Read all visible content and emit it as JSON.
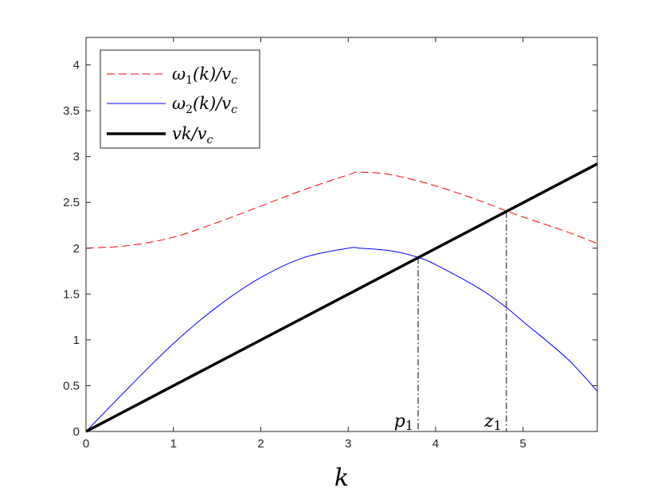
{
  "chart_data": {
    "type": "line",
    "title": "",
    "xlabel": "k",
    "ylabel": "",
    "xlim": [
      0,
      5.85
    ],
    "ylim": [
      0,
      4.3
    ],
    "xticks": [
      "0",
      "1",
      "2",
      "3",
      "4",
      "5"
    ],
    "yticks": [
      "0",
      "0.5",
      "1",
      "1.5",
      "2",
      "2.5",
      "3",
      "3.5",
      "4"
    ],
    "grid": false,
    "legend_position": "top-left",
    "series": [
      {
        "name_parts": {
          "sym": "ω",
          "sub": "1",
          "rest": "(k)/v",
          "sub2": "c"
        },
        "style": "dashed",
        "color": "#ff0000",
        "x": [
          0,
          0.5,
          1,
          1.5,
          2,
          2.5,
          3,
          3.14,
          3.5,
          4,
          4.5,
          4.8,
          5,
          5.5,
          5.85
        ],
        "y": [
          2.0,
          2.03,
          2.12,
          2.28,
          2.46,
          2.64,
          2.8,
          2.83,
          2.8,
          2.68,
          2.52,
          2.41,
          2.34,
          2.18,
          2.05
        ]
      },
      {
        "name_parts": {
          "sym": "ω",
          "sub": "2",
          "rest": "(k)/v",
          "sub2": "c"
        },
        "style": "solid",
        "color": "#0000ff",
        "x": [
          0,
          0.5,
          1,
          1.5,
          2,
          2.5,
          3,
          3.14,
          3.5,
          3.8,
          4,
          4.5,
          4.8,
          5,
          5.5,
          5.85
        ],
        "y": [
          0,
          0.49,
          0.96,
          1.36,
          1.68,
          1.9,
          2.0,
          2.0,
          1.97,
          1.9,
          1.82,
          1.56,
          1.36,
          1.2,
          0.8,
          0.44
        ]
      },
      {
        "name_parts": {
          "sym": "vk/v",
          "sub": "",
          "rest": "",
          "sub2": "c"
        },
        "style": "thick",
        "color": "#000000",
        "x": [
          0,
          5.85
        ],
        "y": [
          0,
          2.92
        ]
      }
    ],
    "annotations": [
      {
        "text": "p",
        "sub": "1",
        "x": 3.8,
        "y": 1.9
      },
      {
        "text": "z",
        "sub": "1",
        "x": 4.81,
        "y": 2.4
      }
    ]
  }
}
